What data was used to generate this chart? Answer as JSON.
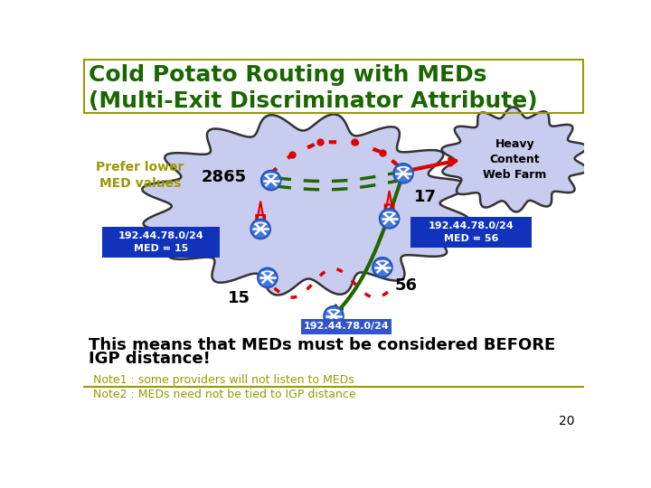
{
  "title_line1": "Cold Potato Routing with MEDs",
  "title_line2": "(Multi-Exit Discriminator Attribute)",
  "title_color": "#1a6600",
  "background_color": "#ffffff",
  "prefer_label": "Prefer lower\nMED values",
  "prefer_color": "#999900",
  "heavy_content_label": "Heavy\nContent\nWeb Farm",
  "med15_label": "192.44.78.0/24\nMED = 15",
  "med56_label": "192.44.78.0/24\nMED = 56",
  "bottom_label": "192.44.78.0/24",
  "num_2865": "2865",
  "num_17": "17",
  "num_15": "15",
  "num_56": "56",
  "note1": "Note1 : some providers will not listen to MEDs",
  "note2": "Note2 : MEDs need not be tied to IGP distance",
  "bottom_text_line1": "This means that MEDs must be considered BEFORE",
  "bottom_text_line2": "IGP distance!",
  "page_num": "20",
  "cloud_fill": "#c8ccee",
  "cloud_edge": "#333333",
  "router_fill": "#4477dd",
  "router_edge": "#2255bb",
  "green_color": "#226600",
  "red_dot_color": "#dd0000",
  "red_solid_color": "#dd0000",
  "pink_arrow_color": "#ff7799",
  "pink_arrow_fill": "#ff99bb",
  "box_blue": "#1133bb",
  "box_blue2": "#3355cc",
  "title_border": "#999900",
  "note_color": "#999900",
  "border_color": "#999900"
}
